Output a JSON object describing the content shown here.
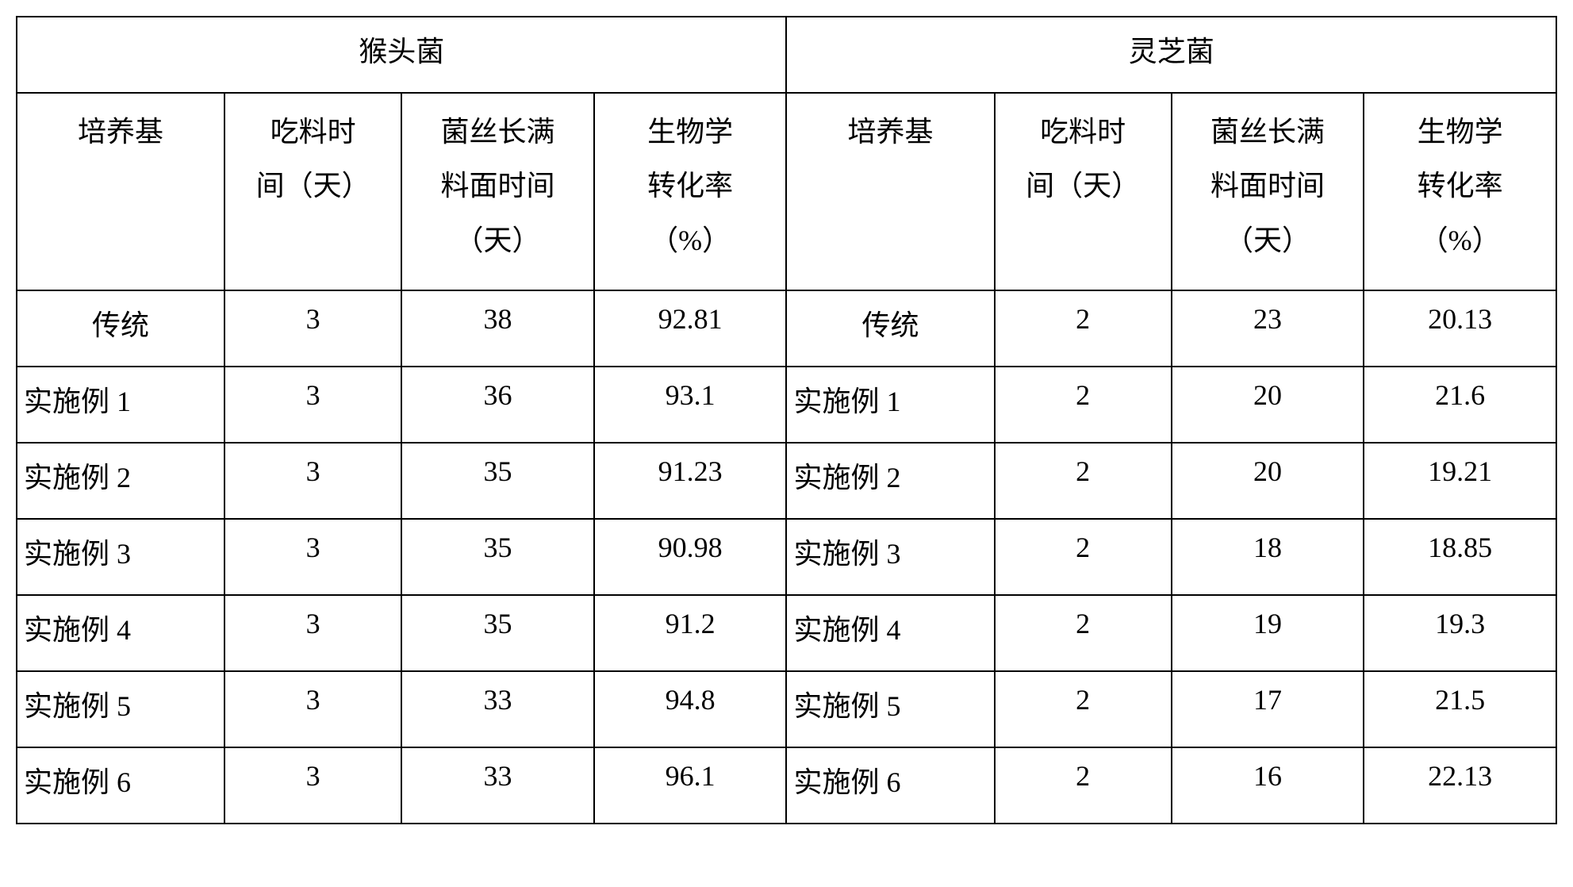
{
  "table": {
    "border_color": "#000000",
    "background_color": "#ffffff",
    "font_family": "SimSun",
    "base_font_size_pt": 27,
    "groups": [
      {
        "title": "猴头菌"
      },
      {
        "title": "灵芝菌"
      }
    ],
    "column_headers": {
      "medium": "培养基",
      "feed_time": "吃料时\n间（天）",
      "mycelium_time": "菌丝长满\n料面时间\n（天）",
      "conversion": "生物学\n转化率\n（%）"
    },
    "row_labels": [
      "传统",
      "实施例 1",
      "实施例 2",
      "实施例 3",
      "实施例 4",
      "实施例 5",
      "实施例 6"
    ],
    "left": {
      "feed_time": [
        "3",
        "3",
        "3",
        "3",
        "3",
        "3",
        "3"
      ],
      "mycelium_time": [
        "38",
        "36",
        "35",
        "35",
        "35",
        "33",
        "33"
      ],
      "conversion": [
        "92.81",
        "93.1",
        "91.23",
        "90.98",
        "91.2",
        "94.8",
        "96.1"
      ]
    },
    "right": {
      "feed_time": [
        "2",
        "2",
        "2",
        "2",
        "2",
        "2",
        "2"
      ],
      "mycelium_time": [
        "23",
        "20",
        "20",
        "18",
        "19",
        "17",
        "16"
      ],
      "conversion": [
        "20.13",
        "21.6",
        "19.21",
        "18.85",
        "19.3",
        "21.5",
        "22.13"
      ]
    }
  }
}
